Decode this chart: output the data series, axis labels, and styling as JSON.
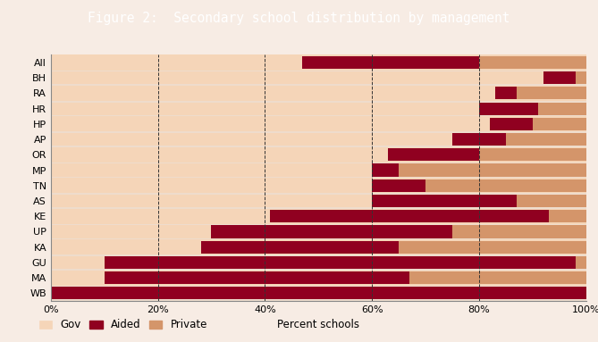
{
  "title": "Figure 2:  Secondary school distribution by management",
  "categories": [
    "All",
    "BH",
    "RA",
    "HR",
    "HP",
    "AP",
    "OR",
    "MP",
    "TN",
    "AS",
    "KE",
    "UP",
    "KA",
    "GU",
    "MA",
    "WB"
  ],
  "gov": [
    47,
    92,
    83,
    80,
    82,
    75,
    63,
    60,
    60,
    60,
    41,
    30,
    28,
    10,
    10,
    0
  ],
  "aided": [
    33,
    6,
    4,
    11,
    8,
    10,
    17,
    5,
    10,
    27,
    52,
    45,
    37,
    88,
    57,
    100
  ],
  "private": [
    20,
    2,
    13,
    9,
    10,
    15,
    20,
    35,
    30,
    13,
    7,
    25,
    35,
    2,
    33,
    0
  ],
  "gov_color": "#f5d5b8",
  "aided_color": "#900020",
  "private_color": "#d4956a",
  "title_bg_color": "#922222",
  "title_text_color": "#ffffff",
  "grid_color": "#333333",
  "bg_color": "#f7ece4",
  "xlabel": "Percent schools",
  "legend_labels": [
    "Gov",
    "Aided",
    "Private"
  ],
  "xlim": [
    0,
    100
  ],
  "xticks": [
    0,
    20,
    40,
    60,
    80,
    100
  ],
  "xticklabels": [
    "0%",
    "20%",
    "40%",
    "60%",
    "80%",
    "100%"
  ],
  "row_colors": [
    "#f5d5b8",
    "#eedccc"
  ],
  "title_fontsize": 10.5,
  "tick_fontsize": 8,
  "xlabel_fontsize": 8.5
}
